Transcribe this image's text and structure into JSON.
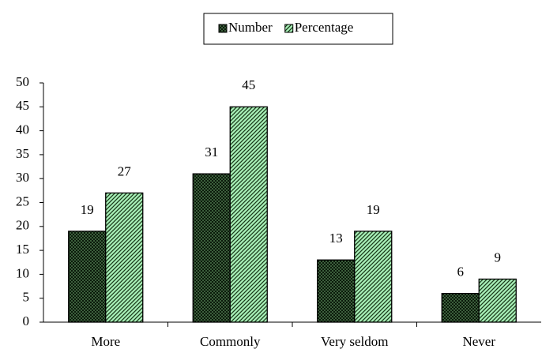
{
  "chart_data": {
    "type": "bar",
    "categories": [
      "More",
      "Commonly",
      "Very seldom",
      "Never"
    ],
    "series": [
      {
        "name": "Number",
        "color": "#3b5e3b",
        "values": [
          19,
          31,
          13,
          6
        ]
      },
      {
        "name": "Percentage",
        "color": "#a8f0b8",
        "values": [
          27,
          45,
          19,
          9
        ]
      }
    ],
    "ylim": [
      0,
      50
    ],
    "yticks": [
      0,
      5,
      10,
      15,
      20,
      25,
      30,
      35,
      40,
      45,
      50
    ],
    "grid": false,
    "legend": "top"
  }
}
